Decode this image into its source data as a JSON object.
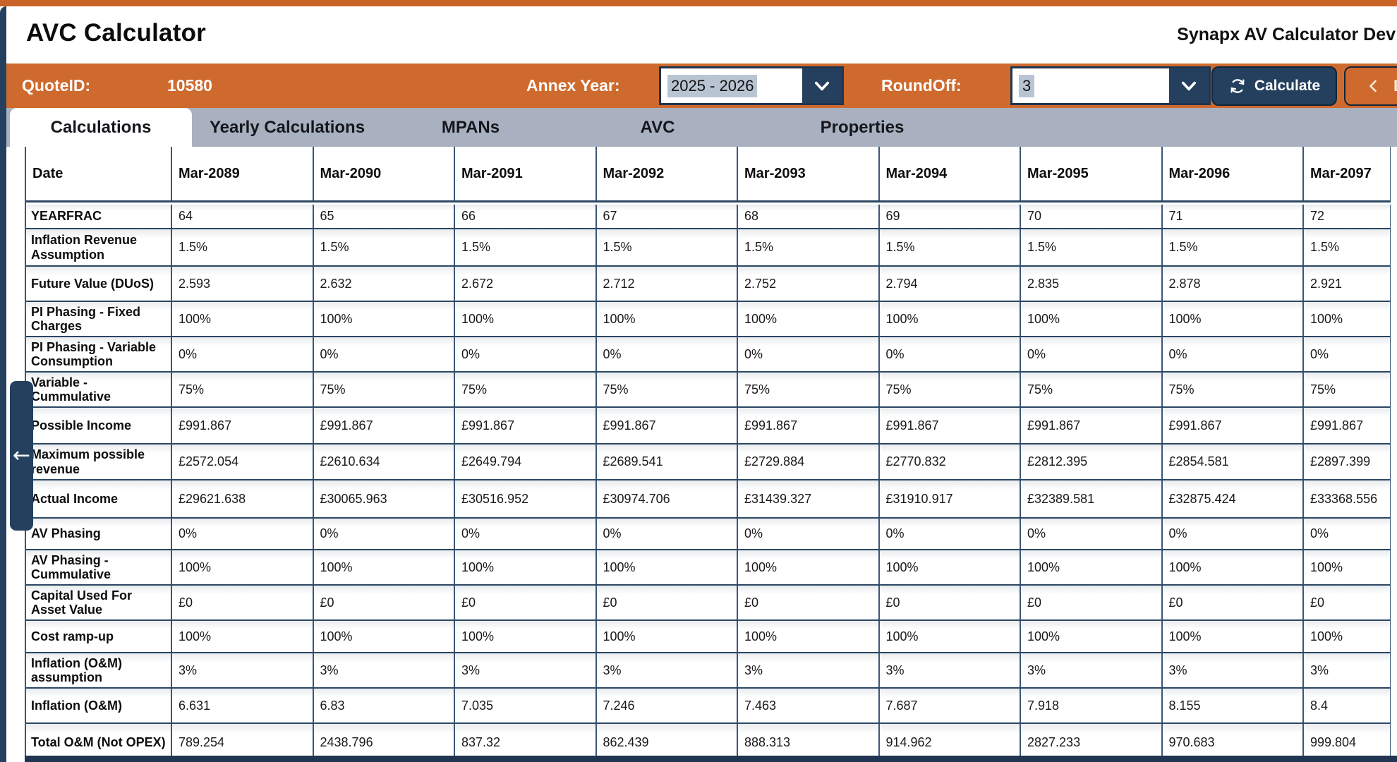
{
  "app": {
    "title": "AVC Calculator",
    "environment": "Synapx AV Calculator Dev"
  },
  "toolbar": {
    "quote_id_label": "QuoteID:",
    "quote_id_value": "10580",
    "annex_year_label": "Annex Year:",
    "annex_year_value": "2025 - 2026",
    "roundoff_label": "RoundOff:",
    "roundoff_value": "3",
    "calculate_label": "Calculate",
    "calculate_icon": "sync-icon",
    "partial_button_visible_text": "E",
    "partial_button_icon": "chevron-left-icon"
  },
  "colors": {
    "accent_orange": "#cf6a2e",
    "navy": "#24405e",
    "tabbar_grey": "#a9b1c0",
    "selection_highlight": "#b9c4d3",
    "table_border": "#2b4763"
  },
  "tabs": [
    {
      "label": "Calculations",
      "active": true
    },
    {
      "label": "Yearly Calculations",
      "active": false
    },
    {
      "label": "MPANs",
      "active": false
    },
    {
      "label": "AVC",
      "active": false
    },
    {
      "label": "Properties",
      "active": false
    }
  ],
  "side_panel": {
    "collapse_arrow": "arrow-left-icon"
  },
  "table": {
    "columns": [
      "Date",
      "Mar-2089",
      "Mar-2090",
      "Mar-2091",
      "Mar-2092",
      "Mar-2093",
      "Mar-2094",
      "Mar-2095",
      "Mar-2096",
      "Mar-2097"
    ],
    "rows": [
      {
        "label": "YEARFRAC",
        "values": [
          "64",
          "65",
          "66",
          "67",
          "68",
          "69",
          "70",
          "71",
          "72"
        ]
      },
      {
        "label": "Inflation Revenue Assumption",
        "values": [
          "1.5%",
          "1.5%",
          "1.5%",
          "1.5%",
          "1.5%",
          "1.5%",
          "1.5%",
          "1.5%",
          "1.5%"
        ]
      },
      {
        "label": "Future Value (DUoS)",
        "values": [
          "2.593",
          "2.632",
          "2.672",
          "2.712",
          "2.752",
          "2.794",
          "2.835",
          "2.878",
          "2.921"
        ]
      },
      {
        "label": "PI Phasing - Fixed Charges",
        "values": [
          "100%",
          "100%",
          "100%",
          "100%",
          "100%",
          "100%",
          "100%",
          "100%",
          "100%"
        ]
      },
      {
        "label": "PI Phasing - Variable Consumption",
        "values": [
          "0%",
          "0%",
          "0%",
          "0%",
          "0%",
          "0%",
          "0%",
          "0%",
          "0%"
        ]
      },
      {
        "label": "Variable - Cummulative",
        "values": [
          "75%",
          "75%",
          "75%",
          "75%",
          "75%",
          "75%",
          "75%",
          "75%",
          "75%"
        ]
      },
      {
        "label": "Possible Income",
        "values": [
          "£991.867",
          "£991.867",
          "£991.867",
          "£991.867",
          "£991.867",
          "£991.867",
          "£991.867",
          "£991.867",
          "£991.867"
        ]
      },
      {
        "label": "Maximum possible revenue",
        "values": [
          "£2572.054",
          "£2610.634",
          "£2649.794",
          "£2689.541",
          "£2729.884",
          "£2770.832",
          "£2812.395",
          "£2854.581",
          "£2897.399"
        ]
      },
      {
        "label": "Actual Income",
        "values": [
          "£29621.638",
          "£30065.963",
          "£30516.952",
          "£30974.706",
          "£31439.327",
          "£31910.917",
          "£32389.581",
          "£32875.424",
          "£33368.556"
        ]
      },
      {
        "label": "AV Phasing",
        "values": [
          "0%",
          "0%",
          "0%",
          "0%",
          "0%",
          "0%",
          "0%",
          "0%",
          "0%"
        ]
      },
      {
        "label": "AV Phasing - Cummulative",
        "values": [
          "100%",
          "100%",
          "100%",
          "100%",
          "100%",
          "100%",
          "100%",
          "100%",
          "100%"
        ]
      },
      {
        "label": "Capital Used For Asset Value",
        "values": [
          "£0",
          "£0",
          "£0",
          "£0",
          "£0",
          "£0",
          "£0",
          "£0",
          "£0"
        ]
      },
      {
        "label": "Cost ramp-up",
        "values": [
          "100%",
          "100%",
          "100%",
          "100%",
          "100%",
          "100%",
          "100%",
          "100%",
          "100%"
        ]
      },
      {
        "label": "Inflation (O&M) assumption",
        "values": [
          "3%",
          "3%",
          "3%",
          "3%",
          "3%",
          "3%",
          "3%",
          "3%",
          "3%"
        ]
      },
      {
        "label": "Inflation (O&M)",
        "values": [
          "6.631",
          "6.83",
          "7.035",
          "7.246",
          "7.463",
          "7.687",
          "7.918",
          "8.155",
          "8.4"
        ]
      },
      {
        "label": "Total O&M (Not OPEX)",
        "values": [
          "789.254",
          "2438.796",
          "837.32",
          "862.439",
          "888.313",
          "914.962",
          "2827.233",
          "970.683",
          "999.804"
        ]
      }
    ]
  }
}
